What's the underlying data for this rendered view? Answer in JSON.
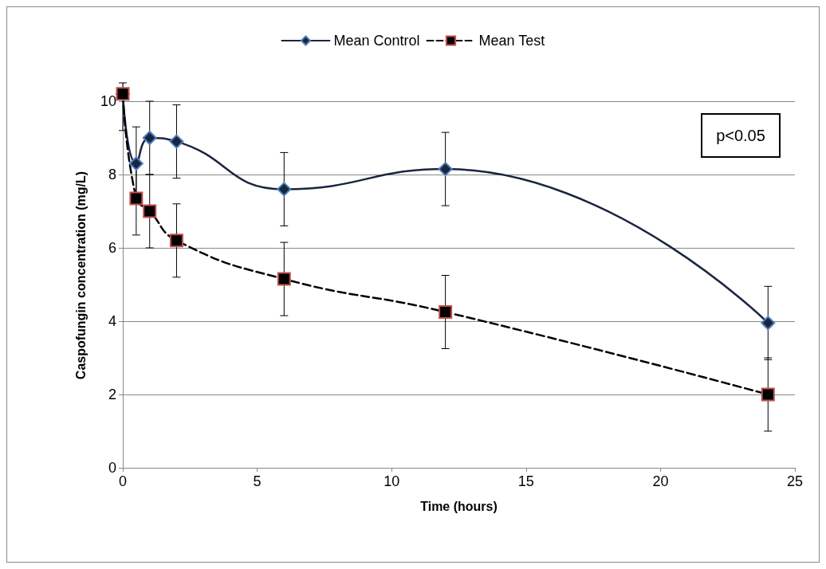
{
  "chart_data": {
    "type": "line",
    "xlabel": "Time (hours)",
    "ylabel": "Caspofungin concentration (mg/L)",
    "annotations": [
      "p<0.05"
    ],
    "xlim": [
      0,
      25
    ],
    "xticks": [
      0,
      5,
      10,
      15,
      20,
      25
    ],
    "ylim": [
      0,
      10.5
    ],
    "yticks": [
      0,
      2,
      4,
      6,
      8,
      10
    ],
    "grid": "y",
    "legend": "top",
    "x": [
      0,
      0.5,
      1,
      2,
      6,
      12,
      24
    ],
    "series": [
      {
        "name": "Mean Control",
        "color": "#1a2540",
        "marker": "diamond",
        "line_style": "solid",
        "values": [
          10.2,
          8.3,
          9.0,
          8.9,
          7.6,
          8.15,
          3.95
        ],
        "errors": [
          [
            9.2,
            10.5
          ],
          1,
          1,
          1,
          1,
          1,
          1
        ]
      },
      {
        "name": "Mean Test",
        "color": "#000000",
        "marker": "square",
        "line_style": "dashed",
        "values": [
          10.2,
          7.35,
          7.0,
          6.2,
          5.15,
          4.25,
          2.0
        ],
        "errors": [
          null,
          1,
          1,
          1,
          1,
          1,
          1
        ]
      }
    ]
  }
}
